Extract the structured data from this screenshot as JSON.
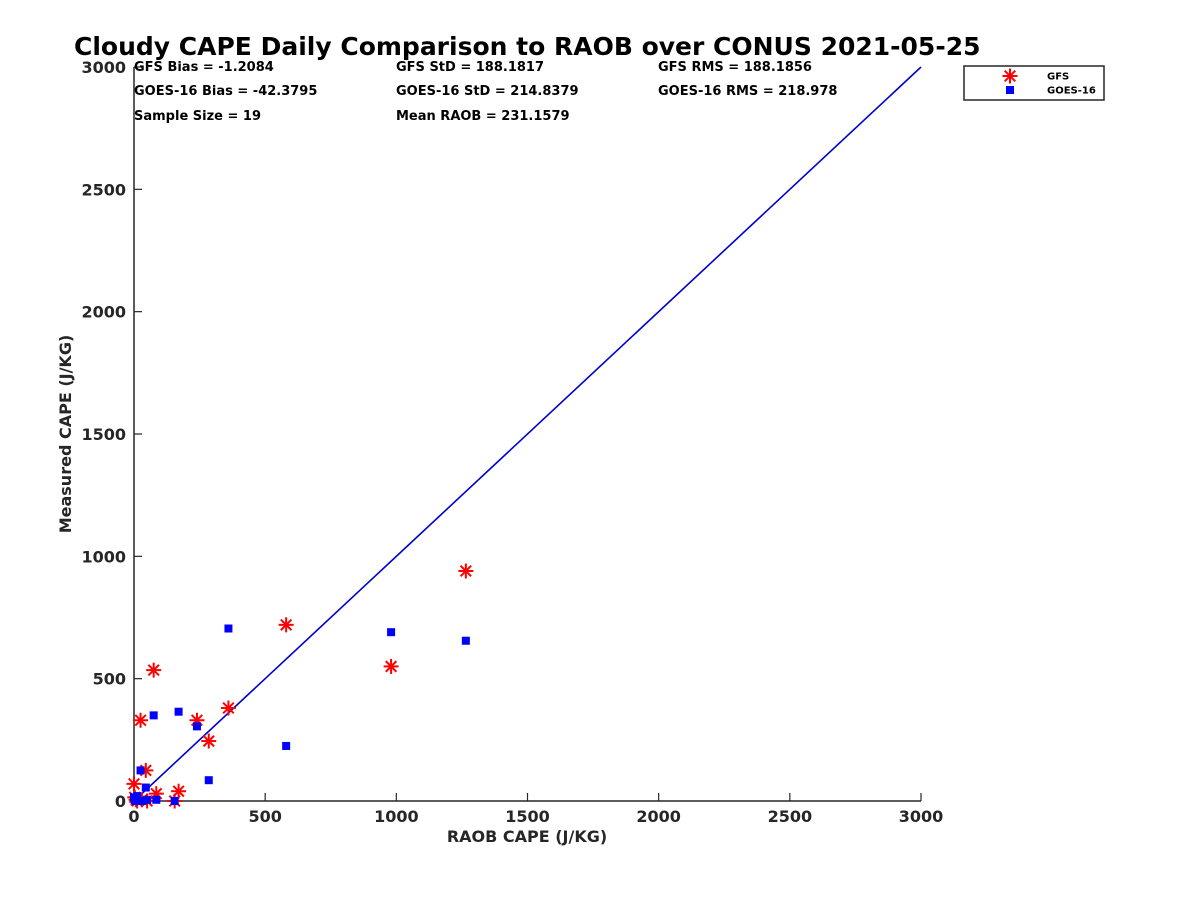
{
  "chart_data": {
    "type": "scatter",
    "title": "Cloudy CAPE Daily Comparison to RAOB over CONUS 2021-05-25",
    "xlabel": "RAOB CAPE (J/KG)",
    "ylabel": "Measured CAPE (J/KG)",
    "xlim": [
      0,
      3000
    ],
    "ylim": [
      0,
      3000
    ],
    "x_ticks": [
      0,
      500,
      1000,
      1500,
      2000,
      2500,
      3000
    ],
    "y_ticks": [
      0,
      500,
      1000,
      1500,
      2000,
      2500,
      3000
    ],
    "x_tick_labels": [
      "0",
      "500",
      "1000",
      "1500",
      "2000",
      "2500",
      "3000"
    ],
    "y_tick_labels": [
      "0",
      "500",
      "1000",
      "1500",
      "2000",
      "2500",
      "3000"
    ],
    "grid": false,
    "legend_position": "top-right",
    "stats": [
      "GFS Bias = -1.2084",
      "GFS StD = 188.1817",
      "GFS RMS = 188.1856",
      "GOES-16 Bias = -42.3795",
      "GOES-16 StD = 214.8379",
      "GOES-16 RMS = 218.978",
      "Sample Size = 19",
      "Mean RAOB = 231.1579"
    ],
    "reference_line": {
      "x": [
        0,
        3000
      ],
      "y": [
        0,
        3000
      ],
      "color": "#0000cc"
    },
    "series": [
      {
        "name": "GFS",
        "marker": "asterisk",
        "color": "#ff0000",
        "points": [
          [
            0,
            70
          ],
          [
            3,
            15
          ],
          [
            8,
            5
          ],
          [
            12,
            0
          ],
          [
            25,
            330
          ],
          [
            30,
            5
          ],
          [
            45,
            125
          ],
          [
            50,
            0
          ],
          [
            75,
            535
          ],
          [
            85,
            30
          ],
          [
            155,
            0
          ],
          [
            170,
            40
          ],
          [
            240,
            330
          ],
          [
            285,
            245
          ],
          [
            360,
            380
          ],
          [
            580,
            720
          ],
          [
            980,
            550
          ],
          [
            1265,
            940
          ]
        ]
      },
      {
        "name": "GOES-16",
        "marker": "square",
        "color": "#0000ff",
        "points": [
          [
            0,
            15
          ],
          [
            3,
            5
          ],
          [
            8,
            0
          ],
          [
            12,
            20
          ],
          [
            25,
            125
          ],
          [
            30,
            0
          ],
          [
            45,
            55
          ],
          [
            50,
            5
          ],
          [
            75,
            350
          ],
          [
            85,
            5
          ],
          [
            155,
            0
          ],
          [
            170,
            365
          ],
          [
            240,
            305
          ],
          [
            285,
            85
          ],
          [
            360,
            705
          ],
          [
            580,
            225
          ],
          [
            980,
            690
          ],
          [
            1265,
            655
          ]
        ]
      }
    ]
  }
}
